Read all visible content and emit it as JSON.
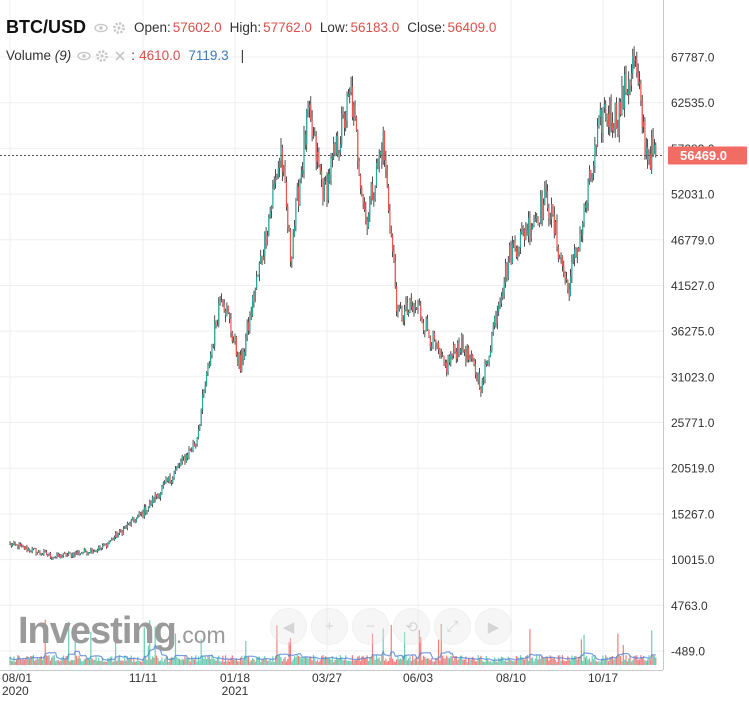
{
  "header": {
    "symbol": "BTC/USD",
    "open_label": "Open:",
    "open_value": "57602.0",
    "high_label": "High:",
    "high_value": "57762.0",
    "low_label": "Low:",
    "low_value": "56183.0",
    "close_label": "Close:",
    "close_value": "56409.0",
    "volume_label": "Volume",
    "volume_period": "(9)",
    "volume_value_1": "4610.0",
    "volume_value_2": "7119.3",
    "separator": "|"
  },
  "logo": {
    "main": "Investing",
    "suffix": ".com"
  },
  "last_price_label": "56469.0",
  "colors": {
    "up": "#26a69a",
    "down": "#ef5350",
    "last_price": "#f16c63",
    "volume_up": "#3cbf9e",
    "volume_ma": "#4a7fd4"
  },
  "chart_data": {
    "type": "candlestick",
    "price_axis": {
      "ticks": [
        "67787.0",
        "62535.0",
        "57283.0",
        "52031.0",
        "46779.0",
        "41527.0",
        "36275.0",
        "31023.0",
        "25771.0",
        "20519.0",
        "15267.0",
        "10015.0",
        "4763.0",
        "-489.0"
      ],
      "range": [
        -489,
        67787
      ]
    },
    "time_axis": {
      "ticks": [
        "08/01",
        "11/11",
        "01/18",
        "03/27",
        "06/03",
        "08/10",
        "10/17"
      ],
      "year_labels": {
        "08/01": "2020",
        "01/18": "2021"
      }
    },
    "last_price": 56469.0,
    "anchors": [
      {
        "date": "2020-08-01",
        "close": 11800
      },
      {
        "date": "2020-09-05",
        "close": 10300
      },
      {
        "date": "2020-10-10",
        "close": 11300
      },
      {
        "date": "2020-11-11",
        "close": 15400
      },
      {
        "date": "2020-12-01",
        "close": 19300
      },
      {
        "date": "2020-12-20",
        "close": 23500
      },
      {
        "date": "2021-01-08",
        "close": 41000
      },
      {
        "date": "2021-01-22",
        "close": 32000
      },
      {
        "date": "2021-02-08",
        "close": 46000
      },
      {
        "date": "2021-02-21",
        "close": 57000
      },
      {
        "date": "2021-02-28",
        "close": 45000
      },
      {
        "date": "2021-03-13",
        "close": 61000
      },
      {
        "date": "2021-03-25",
        "close": 52000
      },
      {
        "date": "2021-04-14",
        "close": 63500
      },
      {
        "date": "2021-04-25",
        "close": 49000
      },
      {
        "date": "2021-05-08",
        "close": 58000
      },
      {
        "date": "2021-05-19",
        "close": 38000
      },
      {
        "date": "2021-06-03",
        "close": 39000
      },
      {
        "date": "2021-06-22",
        "close": 32000
      },
      {
        "date": "2021-07-04",
        "close": 35000
      },
      {
        "date": "2021-07-20",
        "close": 30000
      },
      {
        "date": "2021-08-01",
        "close": 40000
      },
      {
        "date": "2021-08-10",
        "close": 45500
      },
      {
        "date": "2021-09-06",
        "close": 51500
      },
      {
        "date": "2021-09-21",
        "close": 41000
      },
      {
        "date": "2021-10-01",
        "close": 48000
      },
      {
        "date": "2021-10-17",
        "close": 61500
      },
      {
        "date": "2021-10-28",
        "close": 61000
      },
      {
        "date": "2021-11-09",
        "close": 67500
      },
      {
        "date": "2021-11-18",
        "close": 57000
      },
      {
        "date": "2021-11-25",
        "close": 56400
      }
    ]
  }
}
